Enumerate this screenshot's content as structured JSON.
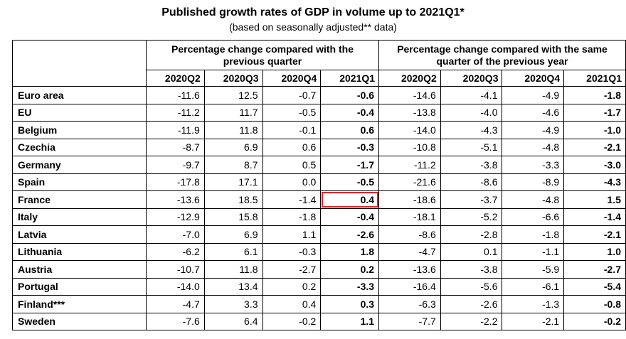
{
  "title": "Published growth rates of GDP in volume up to 2021Q1*",
  "subtitle": "(based on seasonally adjusted** data)",
  "groups": [
    "Percentage change compared with the previous quarter",
    "Percentage change compared with the same quarter of the previous year"
  ],
  "quarters": [
    "2020Q2",
    "2020Q3",
    "2020Q4",
    "2021Q1",
    "2020Q2",
    "2020Q3",
    "2020Q4",
    "2021Q1"
  ],
  "rows": [
    {
      "country": "Euro area",
      "values": [
        "-11.6",
        "12.5",
        "-0.7",
        "-0.6",
        "-14.6",
        "-4.1",
        "-4.9",
        "-1.8"
      ]
    },
    {
      "country": "EU",
      "values": [
        "-11.2",
        "11.7",
        "-0.5",
        "-0.4",
        "-13.8",
        "-4.0",
        "-4.6",
        "-1.7"
      ]
    },
    {
      "country": "Belgium",
      "values": [
        "-11.9",
        "11.8",
        "-0.1",
        "0.6",
        "-14.0",
        "-4.3",
        "-4.9",
        "-1.0"
      ]
    },
    {
      "country": "Czechia",
      "values": [
        "-8.7",
        "6.9",
        "0.6",
        "-0.3",
        "-10.8",
        "-5.1",
        "-4.8",
        "-2.1"
      ]
    },
    {
      "country": "Germany",
      "values": [
        "-9.7",
        "8.7",
        "0.5",
        "-1.7",
        "-11.2",
        "-3.8",
        "-3.3",
        "-3.0"
      ]
    },
    {
      "country": "Spain",
      "values": [
        "-17.8",
        "17.1",
        "0.0",
        "-0.5",
        "-21.6",
        "-8.6",
        "-8.9",
        "-4.3"
      ]
    },
    {
      "country": "France",
      "values": [
        "-13.6",
        "18.5",
        "-1.4",
        "0.4",
        "-18.6",
        "-3.7",
        "-4.8",
        "1.5"
      ]
    },
    {
      "country": "Italy",
      "values": [
        "-12.9",
        "15.8",
        "-1.8",
        "-0.4",
        "-18.1",
        "-5.2",
        "-6.6",
        "-1.4"
      ]
    },
    {
      "country": "Latvia",
      "values": [
        "-7.0",
        "6.9",
        "1.1",
        "-2.6",
        "-8.6",
        "-2.8",
        "-1.8",
        "-2.1"
      ]
    },
    {
      "country": "Lithuania",
      "values": [
        "-6.2",
        "6.1",
        "-0.3",
        "1.8",
        "-4.7",
        "0.1",
        "-1.1",
        "1.0"
      ]
    },
    {
      "country": "Austria",
      "values": [
        "-10.7",
        "11.8",
        "-2.7",
        "0.2",
        "-13.6",
        "-3.8",
        "-5.9",
        "-2.7"
      ]
    },
    {
      "country": "Portugal",
      "values": [
        "-14.0",
        "13.4",
        "0.2",
        "-3.3",
        "-16.4",
        "-5.6",
        "-6.1",
        "-5.4"
      ]
    },
    {
      "country": "Finland***",
      "values": [
        "-4.7",
        "3.3",
        "0.4",
        "0.3",
        "-6.3",
        "-2.6",
        "-1.3",
        "-0.8"
      ]
    },
    {
      "country": "Sweden",
      "values": [
        "-7.6",
        "6.4",
        "-0.2",
        "1.1",
        "-7.7",
        "-2.2",
        "-2.1",
        "-0.2"
      ]
    }
  ],
  "highlight": {
    "country": "France",
    "column": "2021Q1",
    "group": "previous quarter",
    "color": "#e0242a"
  }
}
